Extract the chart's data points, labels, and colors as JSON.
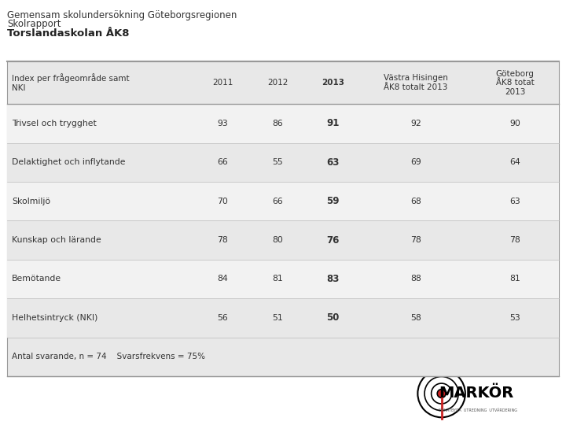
{
  "title_line1": "Gemensam skolundersökning Göteborgsregionen",
  "title_line2": "Skolrapport",
  "title_line3": "Torslandaskolan ÅK8",
  "header_col0": "Index per frågeområde samt\nNKI",
  "header_col1": "2011",
  "header_col2": "2012",
  "header_col3": "2013",
  "header_col4": "Västra Hisingen\nÅK8 totalt 2013",
  "header_col5": "Göteborg\nÅK8 totat\n2013",
  "rows": [
    [
      "Trivsel och trygghet",
      "93",
      "86",
      "91",
      "92",
      "90"
    ],
    [
      "Delaktighet och inflytande",
      "66",
      "55",
      "63",
      "69",
      "64"
    ],
    [
      "Skolmiljö",
      "70",
      "66",
      "59",
      "68",
      "63"
    ],
    [
      "Kunskap och lärande",
      "78",
      "80",
      "76",
      "78",
      "78"
    ],
    [
      "Bemötande",
      "84",
      "81",
      "83",
      "88",
      "81"
    ],
    [
      "Helhetsintryck (NKI)",
      "56",
      "51",
      "50",
      "58",
      "53"
    ]
  ],
  "footer": "Antal svarande, n = 74    Svarsfrekvens = 75%",
  "table_bg": "#e8e8e8",
  "row_bg_odd": "#f2f2f2",
  "row_bg_even": "#e8e8e8",
  "text_color": "#333333",
  "border_color": "#999999"
}
